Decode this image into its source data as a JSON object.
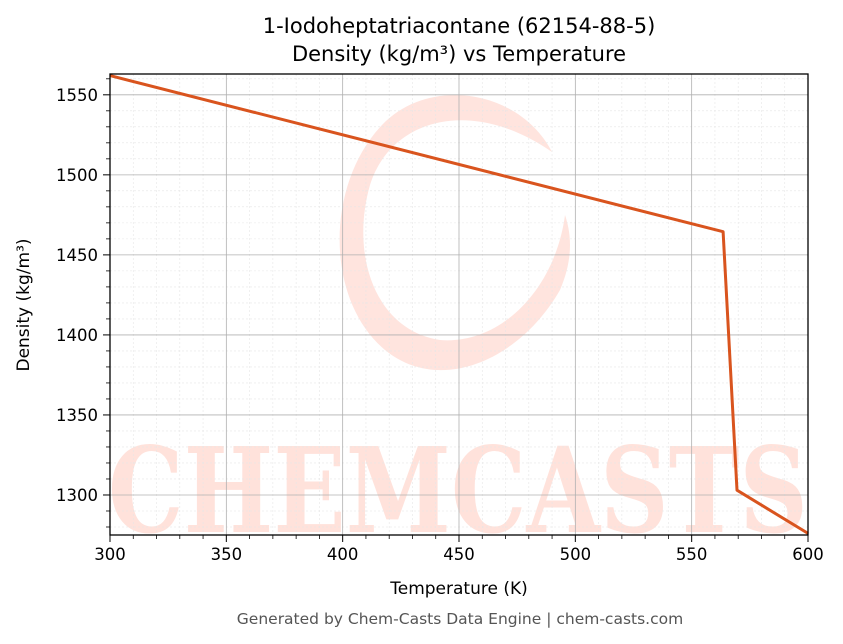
{
  "chart_data": {
    "type": "line",
    "title": "1-Iodoheptatriacontane (62154-88-5)",
    "subtitle": "Density (kg/m³) vs Temperature",
    "xlabel": "Temperature (K)",
    "ylabel": "Density (kg/m³)",
    "xlim": [
      300,
      600
    ],
    "ylim": [
      1275,
      1563
    ],
    "xticks": [
      300,
      350,
      400,
      450,
      500,
      550,
      600
    ],
    "yticks": [
      1300,
      1350,
      1400,
      1450,
      1500,
      1550
    ],
    "grid": true,
    "series": [
      {
        "color": "#d9541e",
        "x": [
          300,
          563.5,
          569.5,
          600
        ],
        "y": [
          1562,
          1464.5,
          1303,
          1276
        ]
      }
    ]
  },
  "watermark": {
    "text": "CHEMCASTS",
    "color": "#ffd9d0"
  },
  "footer": "Generated by Chem-Casts Data Engine | chem-casts.com"
}
